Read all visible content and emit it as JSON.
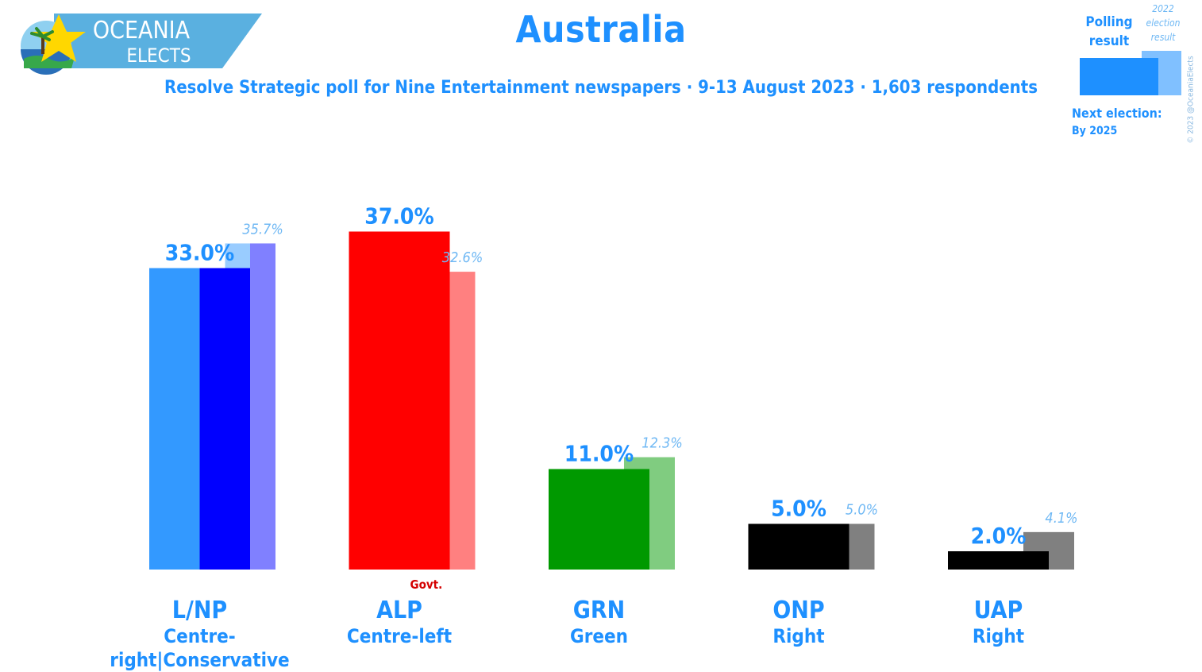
{
  "logo": {
    "line1": "OCEANIA",
    "line2": "ELECTS"
  },
  "title": "Australia",
  "subtitle": "Resolve Strategic poll for Nine Entertainment newspapers · 9-13 August 2023 · 1,603 respondents",
  "legend": {
    "polling_line1": "Polling",
    "polling_line2": "result",
    "election_line1": "2022",
    "election_line2": "election",
    "election_line3": "result",
    "next_election_label": "Next election:",
    "next_election_value": "By 2025",
    "copyright": "© 2023 @OceaniaElects"
  },
  "colors": {
    "text_blue": "#1e90ff",
    "election_label": "#6fb8f4",
    "govt_red": "#d40000"
  },
  "chart_data": {
    "type": "bar",
    "categories": [
      "L/NP",
      "ALP",
      "GRN",
      "ONP",
      "UAP"
    ],
    "ideologies": [
      "Centre-right|Conservative",
      "Centre-left",
      "Green",
      "Right",
      "Right"
    ],
    "series": [
      {
        "values": [
          33.0,
          37.0,
          11.0,
          5.0,
          2.0
        ],
        "labels": [
          "33.0%",
          "37.0%",
          "11.0%",
          "5.0%",
          "2.0%"
        ]
      },
      {
        "values": [
          35.7,
          32.6,
          12.3,
          5.0,
          4.1
        ],
        "labels": [
          "35.7%",
          "32.6%",
          "12.3%",
          "5.0%",
          "4.1%"
        ]
      }
    ],
    "poll_colors": [
      [
        "#3399ff",
        "#0000ff"
      ],
      [
        "#ff0000"
      ],
      [
        "#009900"
      ],
      [
        "#000000"
      ],
      [
        "#000000"
      ]
    ],
    "election_colors": [
      [
        "#99ccff",
        "#8080ff"
      ],
      [
        "#ff8080"
      ],
      [
        "#80cc80"
      ],
      [
        "#808080"
      ],
      [
        "#808080"
      ]
    ],
    "govt_index": 1,
    "govt_label": "Govt.",
    "ylim": [
      0,
      40
    ]
  }
}
